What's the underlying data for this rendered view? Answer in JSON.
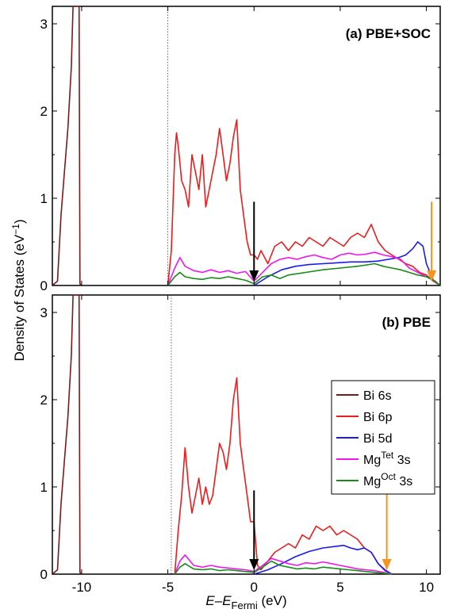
{
  "chart_data": {
    "type": "line",
    "xlabel": {
      "main": "E",
      "dash": "–",
      "sub_main": "E",
      "subscript": "Fermi",
      "unit": " (eV)"
    },
    "ylabel": {
      "main": "Density of States (eV",
      "sup": "−1",
      "close": ")"
    },
    "xlim": [
      -11.7,
      10.8
    ],
    "x_ticks": [
      -10,
      -5,
      0,
      5,
      10
    ],
    "x_tick_labels": [
      "-10",
      "-5",
      "0",
      "5",
      "10"
    ],
    "y_ticks": [
      0,
      1,
      2,
      3
    ],
    "y_tick_labels": [
      "0",
      "1",
      "2",
      "3"
    ],
    "ylim": [
      0,
      3.2
    ],
    "grid": false,
    "legend_position": "right, panel (b)",
    "legend": [
      {
        "key": "bi6s",
        "label": "Bi 6s",
        "sup": "",
        "tail": "",
        "color": "#7a1a1a"
      },
      {
        "key": "bi6p",
        "label": "Bi 6p",
        "sup": "",
        "tail": "",
        "color": "#ee1c1c"
      },
      {
        "key": "bi5d",
        "label": "Bi 5d",
        "sup": "",
        "tail": "",
        "color": "#1a1aee"
      },
      {
        "key": "mgtet",
        "label": "Mg",
        "sup": "Tet",
        "tail": " 3s",
        "color": "#ee18ee"
      },
      {
        "key": "mgoct",
        "label": "Mg",
        "sup": "Oct",
        "tail": " 3s",
        "color": "#1a8a1a"
      }
    ],
    "panels": [
      {
        "id": "a",
        "title": "(a) PBE+SOC",
        "dotted_line_x": -5,
        "arrows": [
          {
            "x": 0,
            "color": "#000000"
          },
          {
            "x": 10.3,
            "color": "#f7941d"
          }
        ],
        "series": [
          {
            "key": "bi6s",
            "x": [
              -11.7,
              -11.4,
              -11.2,
              -11.0,
              -10.8,
              -10.6,
              -10.5,
              -10.45,
              -10.4,
              -10.35,
              -10.3,
              -10.25,
              -10.2,
              -10.15,
              -10.1,
              -10.0
            ],
            "y": [
              0,
              0.05,
              0.8,
              1.3,
              1.8,
              2.5,
              3.2,
              3.2,
              3.2,
              3.2,
              3.2,
              3.2,
              3.2,
              3.2,
              0.02,
              0
            ]
          },
          {
            "key": "bi6p",
            "x": [
              -5.0,
              -4.8,
              -4.6,
              -4.5,
              -4.4,
              -4.2,
              -4.0,
              -3.8,
              -3.6,
              -3.4,
              -3.2,
              -3.0,
              -2.8,
              -2.6,
              -2.4,
              -2.2,
              -2.0,
              -1.8,
              -1.6,
              -1.4,
              -1.2,
              -1.0,
              -0.8,
              -0.6,
              -0.4,
              -0.2,
              0.0,
              0.2,
              0.4,
              0.8,
              1.2,
              1.6,
              2.0,
              2.4,
              2.8,
              3.2,
              3.6,
              4.0,
              4.4,
              4.8,
              5.2,
              5.6,
              6.0,
              6.4,
              6.8,
              7.2,
              7.6,
              8.0,
              8.4,
              8.8,
              9.2,
              9.6,
              10.0,
              10.4,
              10.8
            ],
            "y": [
              0,
              0.4,
              1.5,
              1.75,
              1.6,
              1.2,
              1.1,
              0.9,
              1.5,
              1.3,
              1.1,
              1.5,
              0.9,
              1.1,
              1.3,
              1.5,
              1.8,
              1.5,
              1.2,
              1.4,
              1.7,
              1.9,
              1.1,
              0.8,
              0.5,
              0.35,
              0.35,
              0.3,
              0.4,
              0.25,
              0.45,
              0.5,
              0.4,
              0.5,
              0.45,
              0.55,
              0.5,
              0.45,
              0.55,
              0.5,
              0.45,
              0.55,
              0.6,
              0.55,
              0.7,
              0.5,
              0.4,
              0.35,
              0.3,
              0.25,
              0.22,
              0.15,
              0.12,
              0.05,
              0
            ]
          },
          {
            "key": "bi5d",
            "x": [
              0.0,
              0.8,
              1.6,
              2.4,
              3.2,
              4.0,
              4.8,
              5.6,
              6.4,
              7.2,
              7.8,
              8.4,
              8.8,
              9.2,
              9.5,
              9.8,
              10.0,
              10.4,
              10.8
            ],
            "y": [
              0,
              0.1,
              0.18,
              0.22,
              0.24,
              0.25,
              0.26,
              0.27,
              0.27,
              0.28,
              0.3,
              0.32,
              0.35,
              0.42,
              0.5,
              0.45,
              0.25,
              0.06,
              0
            ]
          },
          {
            "key": "mgtet",
            "x": [
              -5.0,
              -4.6,
              -4.3,
              -4.0,
              -3.5,
              -3.0,
              -2.5,
              -2.0,
              -1.5,
              -1.0,
              -0.5,
              0.0,
              0.5,
              1.0,
              1.5,
              2.0,
              2.5,
              3.0,
              3.5,
              4.0,
              4.5,
              5.0,
              5.5,
              6.0,
              6.5,
              7.0,
              7.5,
              8.0,
              8.5,
              9.0,
              9.5,
              10.0,
              10.5,
              10.8
            ],
            "y": [
              0,
              0.2,
              0.32,
              0.22,
              0.17,
              0.15,
              0.18,
              0.15,
              0.17,
              0.14,
              0.16,
              0.05,
              0.15,
              0.25,
              0.3,
              0.32,
              0.3,
              0.33,
              0.35,
              0.32,
              0.3,
              0.35,
              0.37,
              0.35,
              0.36,
              0.38,
              0.35,
              0.33,
              0.3,
              0.2,
              0.15,
              0.1,
              0.05,
              0
            ]
          },
          {
            "key": "mgoct",
            "x": [
              -5.0,
              -4.6,
              -4.3,
              -4.0,
              -3.5,
              -3.0,
              -2.5,
              -2.0,
              -1.5,
              -1.0,
              -0.5,
              0.0,
              0.5,
              1.0,
              1.5,
              2.0,
              3.0,
              4.0,
              5.0,
              6.0,
              7.0,
              7.5,
              8.0,
              8.5,
              9.0,
              9.5,
              10.0,
              10.5,
              10.8
            ],
            "y": [
              0,
              0.1,
              0.15,
              0.1,
              0.08,
              0.07,
              0.09,
              0.08,
              0.1,
              0.08,
              0.06,
              0.02,
              0.1,
              0.12,
              0.08,
              0.12,
              0.15,
              0.18,
              0.2,
              0.22,
              0.25,
              0.22,
              0.2,
              0.18,
              0.15,
              0.12,
              0.1,
              0.05,
              0
            ]
          }
        ]
      },
      {
        "id": "b",
        "title": "(b) PBE",
        "dotted_line_x": -4.8,
        "arrows": [
          {
            "x": 0,
            "color": "#000000"
          },
          {
            "x": 7.7,
            "color": "#f7941d"
          }
        ],
        "series": [
          {
            "key": "bi6s",
            "x": [
              -11.7,
              -11.4,
              -11.2,
              -11.0,
              -10.8,
              -10.6,
              -10.5,
              -10.4,
              -10.3,
              -10.2,
              -10.15,
              -10.1,
              -10.0
            ],
            "y": [
              0,
              0.05,
              0.8,
              1.3,
              1.8,
              2.5,
              3.2,
              3.2,
              3.2,
              3.2,
              3.2,
              0.02,
              0
            ]
          },
          {
            "key": "bi6p",
            "x": [
              -4.6,
              -4.4,
              -4.2,
              -4.0,
              -3.8,
              -3.6,
              -3.4,
              -3.2,
              -3.0,
              -2.8,
              -2.6,
              -2.4,
              -2.2,
              -2.0,
              -1.8,
              -1.6,
              -1.4,
              -1.2,
              -1.0,
              -0.8,
              -0.6,
              -0.4,
              -0.2,
              0.0,
              0.2,
              0.4,
              0.8,
              1.2,
              1.6,
              2.0,
              2.4,
              2.8,
              3.2,
              3.6,
              4.0,
              4.4,
              4.8,
              5.2,
              5.6,
              6.0,
              6.4,
              6.8,
              7.2,
              7.6,
              8.0
            ],
            "y": [
              0,
              0.5,
              0.9,
              1.45,
              1.0,
              0.7,
              0.9,
              1.1,
              0.8,
              1.0,
              0.8,
              0.9,
              1.2,
              1.5,
              1.4,
              1.2,
              1.5,
              2.0,
              2.25,
              1.5,
              1.2,
              0.9,
              0.6,
              0.6,
              0.1,
              0.05,
              0.15,
              0.25,
              0.3,
              0.35,
              0.3,
              0.45,
              0.4,
              0.55,
              0.5,
              0.55,
              0.45,
              0.5,
              0.45,
              0.4,
              0.3,
              0.25,
              0.12,
              0.05,
              0
            ]
          },
          {
            "key": "bi5d",
            "x": [
              0.0,
              0.8,
              1.6,
              2.4,
              3.2,
              4.0,
              4.8,
              5.2,
              5.6,
              6.0,
              6.4,
              6.8,
              7.2,
              7.6,
              8.0
            ],
            "y": [
              0,
              0.05,
              0.12,
              0.2,
              0.26,
              0.3,
              0.32,
              0.33,
              0.3,
              0.28,
              0.3,
              0.25,
              0.12,
              0.04,
              0
            ]
          },
          {
            "key": "mgtet",
            "x": [
              -4.6,
              -4.3,
              -4.0,
              -3.5,
              -3.0,
              -2.5,
              -2.0,
              -1.5,
              -1.0,
              -0.5,
              0.0,
              0.5,
              1.0,
              1.5,
              2.0,
              2.5,
              3.0,
              3.5,
              4.0,
              4.5,
              5.0,
              5.5,
              6.0,
              6.5,
              7.0,
              7.5,
              8.0
            ],
            "y": [
              0,
              0.15,
              0.22,
              0.1,
              0.08,
              0.1,
              0.08,
              0.07,
              0.06,
              0.05,
              0.03,
              0.1,
              0.18,
              0.15,
              0.12,
              0.1,
              0.13,
              0.12,
              0.14,
              0.12,
              0.1,
              0.08,
              0.06,
              0.05,
              0.04,
              0.02,
              0
            ]
          },
          {
            "key": "mgoct",
            "x": [
              -4.6,
              -4.3,
              -4.0,
              -3.5,
              -3.0,
              -2.5,
              -2.0,
              -1.5,
              -1.0,
              -0.5,
              0.0,
              0.5,
              1.0,
              1.5,
              2.0,
              2.5,
              3.0,
              3.5,
              4.0,
              4.5,
              5.0,
              5.5,
              6.0,
              6.5,
              7.0,
              7.5,
              8.0
            ],
            "y": [
              0,
              0.08,
              0.12,
              0.06,
              0.05,
              0.06,
              0.04,
              0.05,
              0.04,
              0.03,
              0.02,
              0.08,
              0.15,
              0.1,
              0.08,
              0.06,
              0.07,
              0.06,
              0.08,
              0.07,
              0.06,
              0.05,
              0.04,
              0.03,
              0.02,
              0.01,
              0
            ]
          }
        ]
      }
    ]
  }
}
